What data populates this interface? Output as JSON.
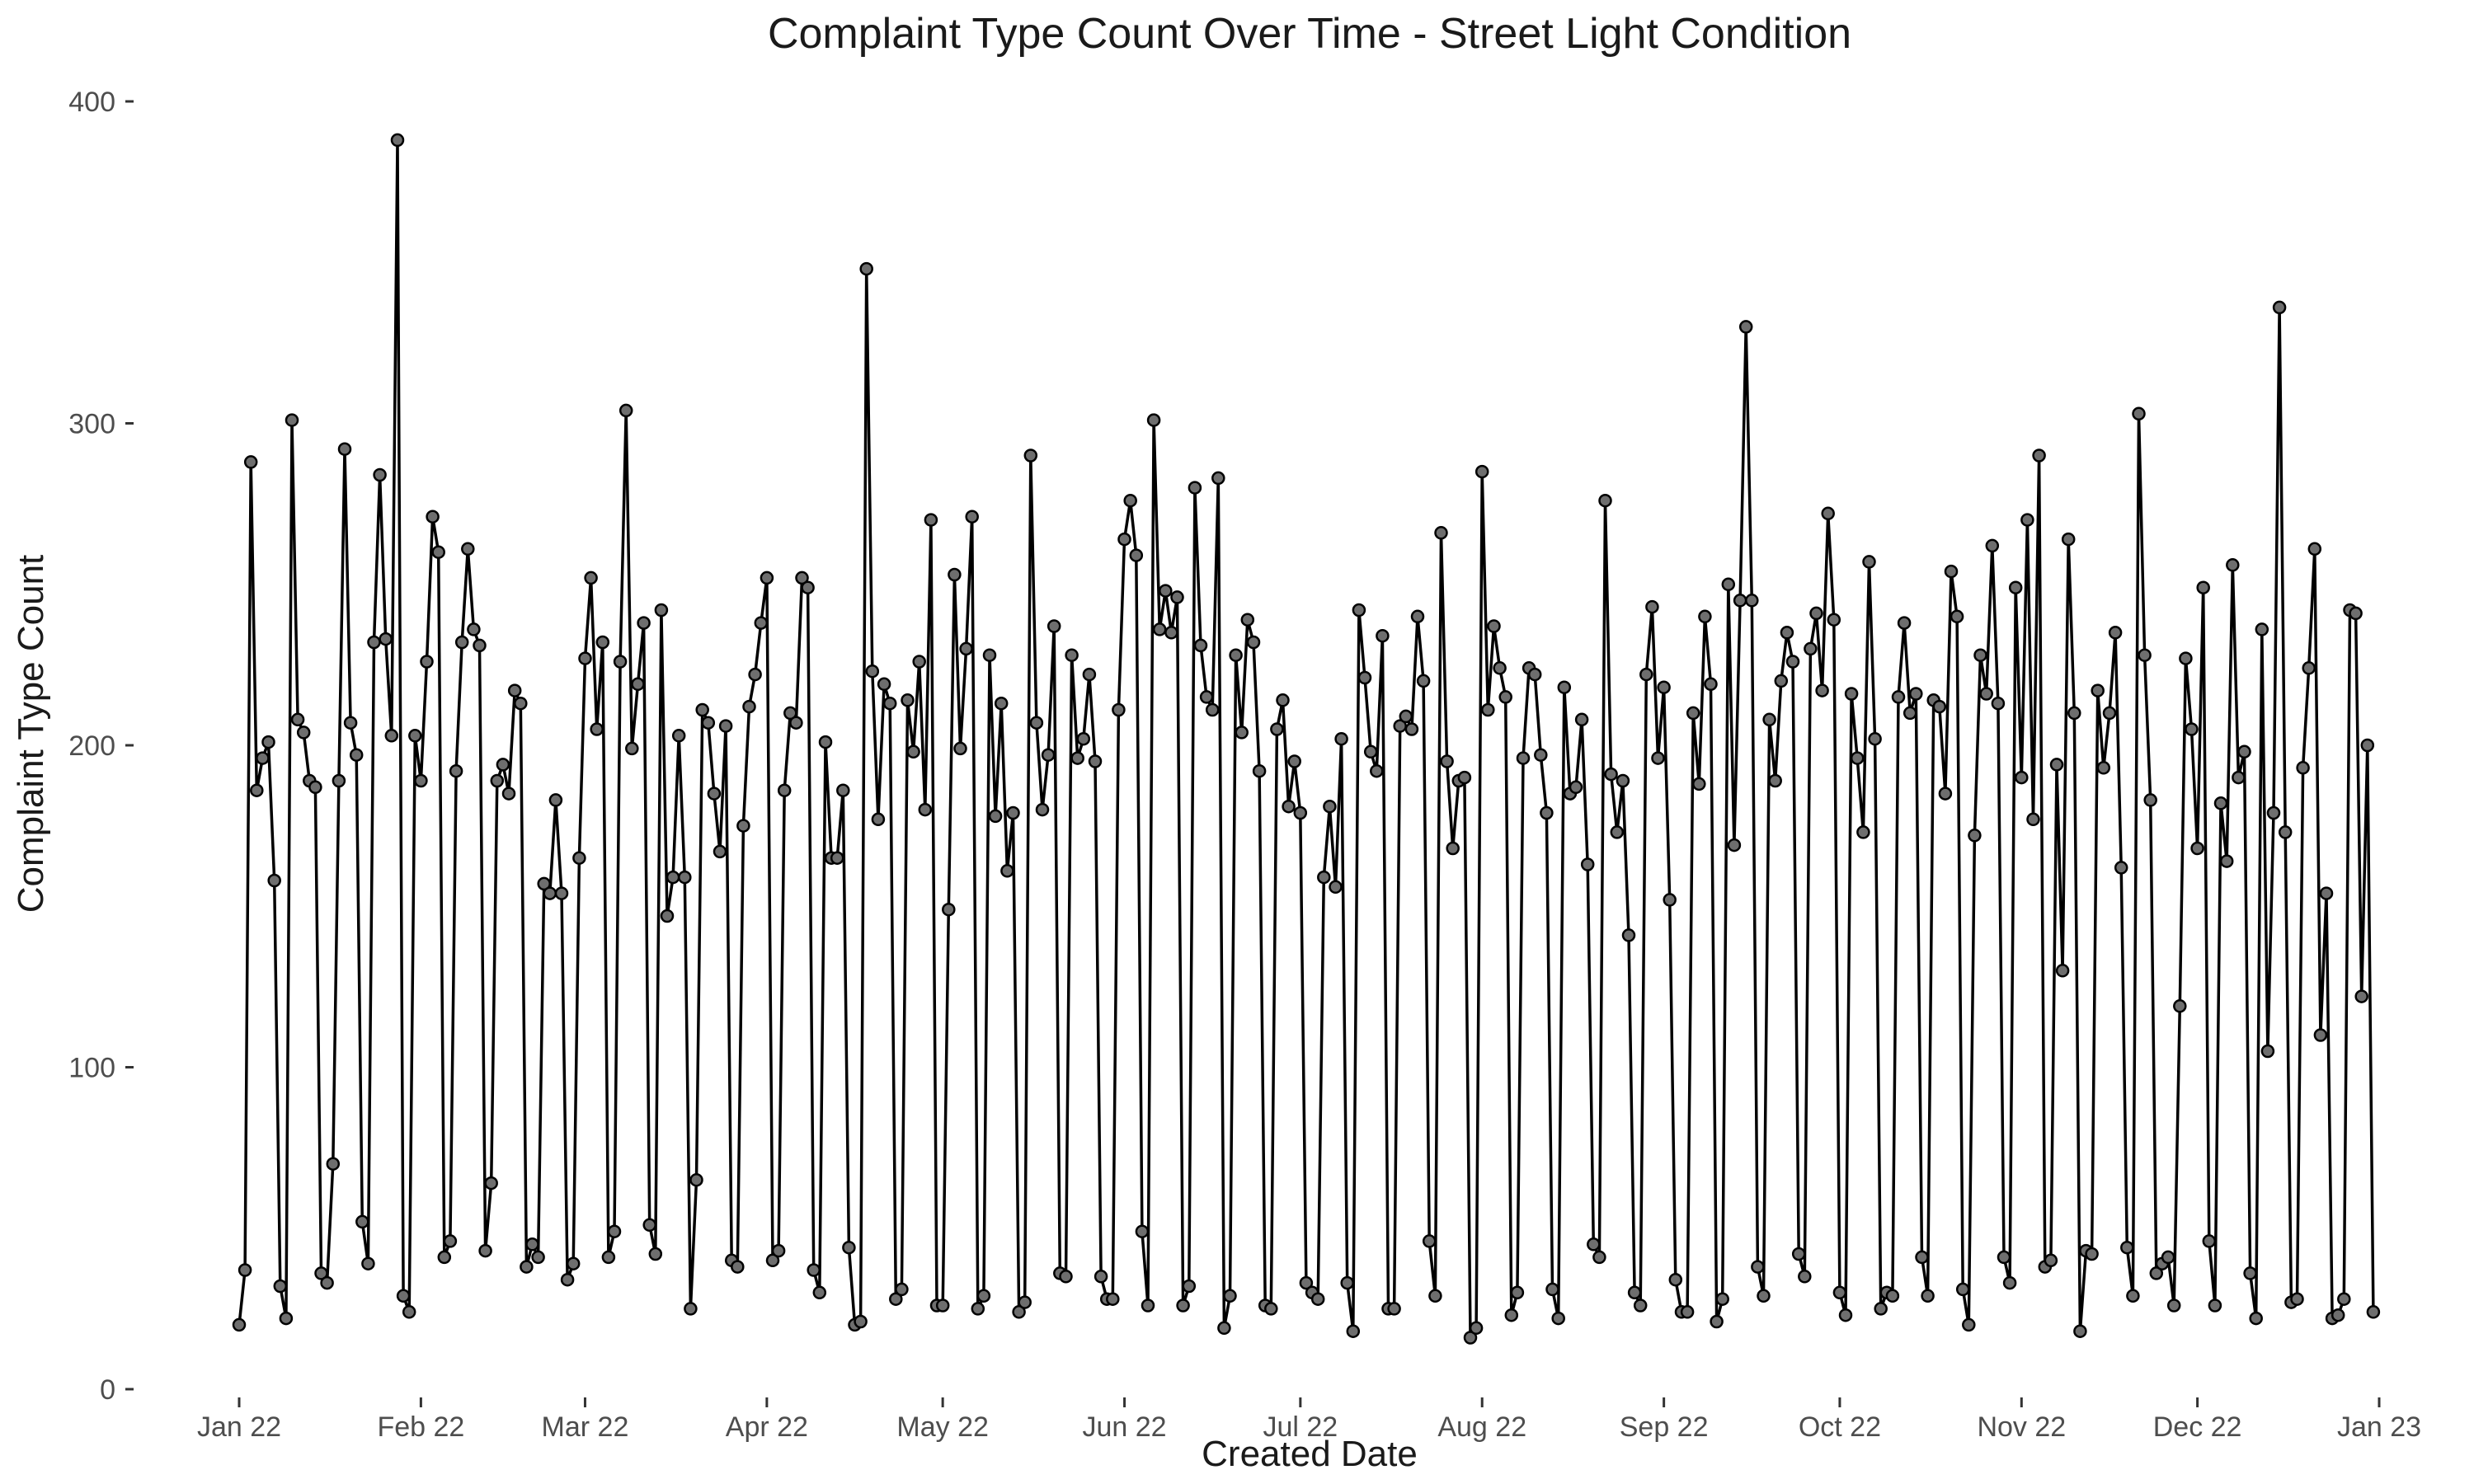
{
  "chart_data": {
    "type": "line",
    "title": "Complaint Type Count Over Time - Street Light Condition",
    "xlabel": "Created Date",
    "ylabel": "Complaint Type Count",
    "ylim": [
      0,
      400
    ],
    "xlim": [
      "2022-01-01",
      "2023-01-01"
    ],
    "yticks": [
      0,
      100,
      200,
      300,
      400
    ],
    "xticks": [
      {
        "date": "2022-01-01",
        "label": "Jan 22"
      },
      {
        "date": "2022-02-01",
        "label": "Feb 22"
      },
      {
        "date": "2022-03-01",
        "label": "Mar 22"
      },
      {
        "date": "2022-04-01",
        "label": "Apr 22"
      },
      {
        "date": "2022-05-01",
        "label": "May 22"
      },
      {
        "date": "2022-06-01",
        "label": "Jun 22"
      },
      {
        "date": "2022-07-01",
        "label": "Jul 22"
      },
      {
        "date": "2022-08-01",
        "label": "Aug 22"
      },
      {
        "date": "2022-09-01",
        "label": "Sep 22"
      },
      {
        "date": "2022-10-01",
        "label": "Oct 22"
      },
      {
        "date": "2022-11-01",
        "label": "Nov 22"
      },
      {
        "date": "2022-12-01",
        "label": "Dec 22"
      },
      {
        "date": "2023-01-01",
        "label": "Jan 23"
      }
    ],
    "grid": false,
    "line_color": "#000000",
    "point_color": "#6e6e6e",
    "series": [
      {
        "start_date": "2022-01-01",
        "values": [
          20,
          37,
          288,
          186,
          196,
          201,
          158,
          32,
          22,
          301,
          208,
          204,
          189,
          187,
          36,
          33,
          70,
          189,
          292,
          207,
          197,
          52,
          39,
          232,
          284,
          233,
          203,
          388,
          29,
          24,
          203,
          189,
          226,
          271,
          260,
          41,
          46,
          192,
          232,
          261,
          236,
          231,
          43,
          64,
          189,
          194,
          185,
          217,
          213,
          38,
          45,
          41,
          157,
          154,
          183,
          154,
          34,
          39,
          165,
          227,
          252,
          205,
          232,
          41,
          49,
          226,
          304,
          199,
          219,
          238,
          51,
          42,
          242,
          147,
          159,
          203,
          159,
          25,
          65,
          211,
          207,
          185,
          167,
          206,
          40,
          38,
          175,
          212,
          222,
          238,
          252,
          40,
          43,
          186,
          210,
          207,
          252,
          249,
          37,
          30,
          201,
          165,
          165,
          186,
          44,
          20,
          21,
          348,
          223,
          177,
          219,
          213,
          28,
          31,
          214,
          198,
          226,
          180,
          270,
          26,
          26,
          149,
          253,
          199,
          230,
          271,
          25,
          29,
          228,
          178,
          213,
          161,
          179,
          24,
          27,
          290,
          207,
          180,
          197,
          237,
          36,
          35,
          228,
          196,
          202,
          222,
          195,
          35,
          28,
          28,
          211,
          264,
          276,
          259,
          49,
          26,
          301,
          236,
          248,
          235,
          246,
          26,
          32,
          280,
          231,
          215,
          211,
          283,
          19,
          29,
          228,
          204,
          239,
          232,
          192,
          26,
          25,
          205,
          214,
          181,
          195,
          179,
          33,
          30,
          28,
          159,
          181,
          156,
          202,
          33,
          18,
          242,
          221,
          198,
          192,
          234,
          25,
          25,
          206,
          209,
          205,
          240,
          220,
          46,
          29,
          266,
          195,
          168,
          189,
          190,
          16,
          19,
          285,
          211,
          237,
          224,
          215,
          23,
          30,
          196,
          224,
          222,
          197,
          179,
          31,
          22,
          218,
          185,
          187,
          208,
          163,
          45,
          41,
          276,
          191,
          173,
          189,
          141,
          30,
          26,
          222,
          243,
          196,
          218,
          152,
          34,
          24,
          24,
          210,
          188,
          240,
          219,
          21,
          28,
          250,
          169,
          245,
          330,
          245,
          38,
          29,
          208,
          189,
          220,
          235,
          226,
          42,
          35,
          230,
          241,
          217,
          272,
          239,
          30,
          23,
          216,
          196,
          173,
          257,
          202,
          25,
          30,
          29,
          215,
          238,
          210,
          216,
          41,
          29,
          214,
          212,
          185,
          254,
          240,
          31,
          20,
          172,
          228,
          216,
          262,
          213,
          41,
          33,
          249,
          190,
          270,
          177,
          290,
          38,
          40,
          194,
          130,
          264,
          210,
          18,
          43,
          42,
          217,
          193,
          210,
          235,
          162,
          44,
          29,
          303,
          228,
          183,
          36,
          39,
          41,
          26,
          119,
          227,
          205,
          168,
          249,
          46,
          26,
          182,
          164,
          256,
          190,
          198,
          36,
          22,
          236,
          105,
          179,
          336,
          173,
          27,
          28,
          193,
          224,
          261,
          110,
          154,
          22,
          23,
          28,
          242,
          241,
          122,
          200,
          24
        ]
      }
    ]
  }
}
